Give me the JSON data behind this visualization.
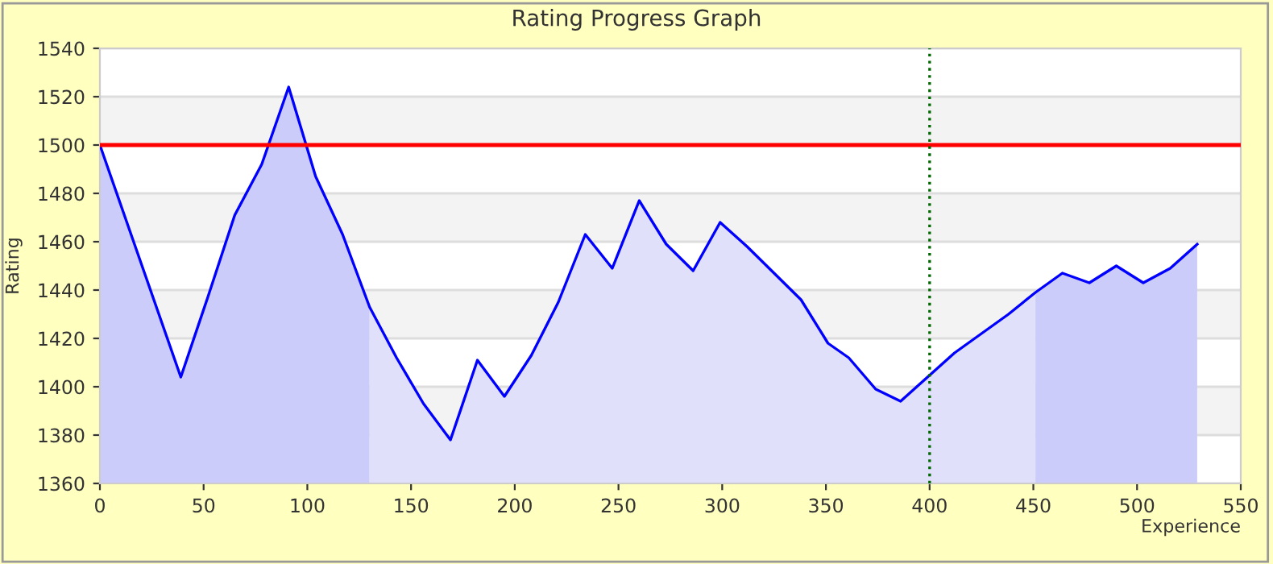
{
  "chart_data": {
    "type": "line",
    "title": "Rating Progress Graph",
    "xlabel": "Experience",
    "ylabel": "Rating",
    "series": [
      {
        "type": "area",
        "color": "#ccccfa",
        "x": [
          0,
          13,
          26,
          39,
          52,
          65,
          78,
          91,
          104,
          117,
          130
        ],
        "values": [
          1500,
          1468,
          1436,
          1404,
          1437,
          1471,
          1492,
          1524,
          1487,
          1463,
          1433
        ]
      },
      {
        "type": "area",
        "color": "#e0e0fa",
        "x": [
          130,
          143,
          156,
          169,
          182,
          195,
          208,
          221,
          234,
          247,
          260,
          273,
          286,
          299,
          312,
          325,
          338,
          351,
          361,
          374,
          386,
          399,
          412,
          425,
          438,
          451
        ],
        "values": [
          1433,
          1412,
          1393,
          1378,
          1411,
          1396,
          1413,
          1435,
          1463,
          1449,
          1477,
          1459,
          1448,
          1468,
          1458,
          1447,
          1436,
          1418,
          1412,
          1399,
          1394,
          1404,
          1414,
          1422,
          1430,
          1439
        ]
      },
      {
        "type": "area",
        "color": "#ccccfa",
        "x": [
          451,
          464,
          477,
          490,
          503,
          516,
          529
        ],
        "values": [
          1439,
          1447,
          1443,
          1450,
          1443,
          1449,
          1459
        ]
      },
      {
        "color": "#0000ff",
        "x": [
          0,
          13,
          26,
          39,
          52,
          65,
          78,
          91,
          104,
          117,
          130,
          143,
          156,
          169,
          182,
          195,
          208,
          221,
          234,
          247,
          260,
          273,
          286,
          299,
          312,
          325,
          338,
          351,
          361,
          374,
          386,
          399,
          412,
          425,
          438,
          451,
          464,
          477,
          490,
          503,
          516,
          529
        ],
        "values": [
          1500,
          1468,
          1436,
          1404,
          1437,
          1471,
          1492,
          1524,
          1487,
          1463,
          1433,
          1412,
          1393,
          1378,
          1411,
          1396,
          1413,
          1435,
          1463,
          1449,
          1477,
          1459,
          1448,
          1468,
          1458,
          1447,
          1436,
          1418,
          1412,
          1399,
          1394,
          1404,
          1414,
          1422,
          1430,
          1439,
          1447,
          1443,
          1450,
          1443,
          1449,
          1459
        ]
      }
    ],
    "ref_lines": [
      {
        "axis": "y",
        "value": 1500,
        "color": "#ff0000",
        "line_style": "solid"
      },
      {
        "axis": "x",
        "value": 400,
        "color": "#006600",
        "line_style": "dotted"
      }
    ],
    "xlim": [
      0,
      550
    ],
    "xticks": [
      0,
      50,
      100,
      150,
      200,
      250,
      300,
      350,
      400,
      450,
      500,
      550
    ],
    "ylim": [
      1360,
      1540
    ],
    "yticks": [
      1360,
      1380,
      1400,
      1420,
      1440,
      1460,
      1480,
      1500,
      1520,
      1540
    ],
    "grid": "y",
    "legend": false
  }
}
